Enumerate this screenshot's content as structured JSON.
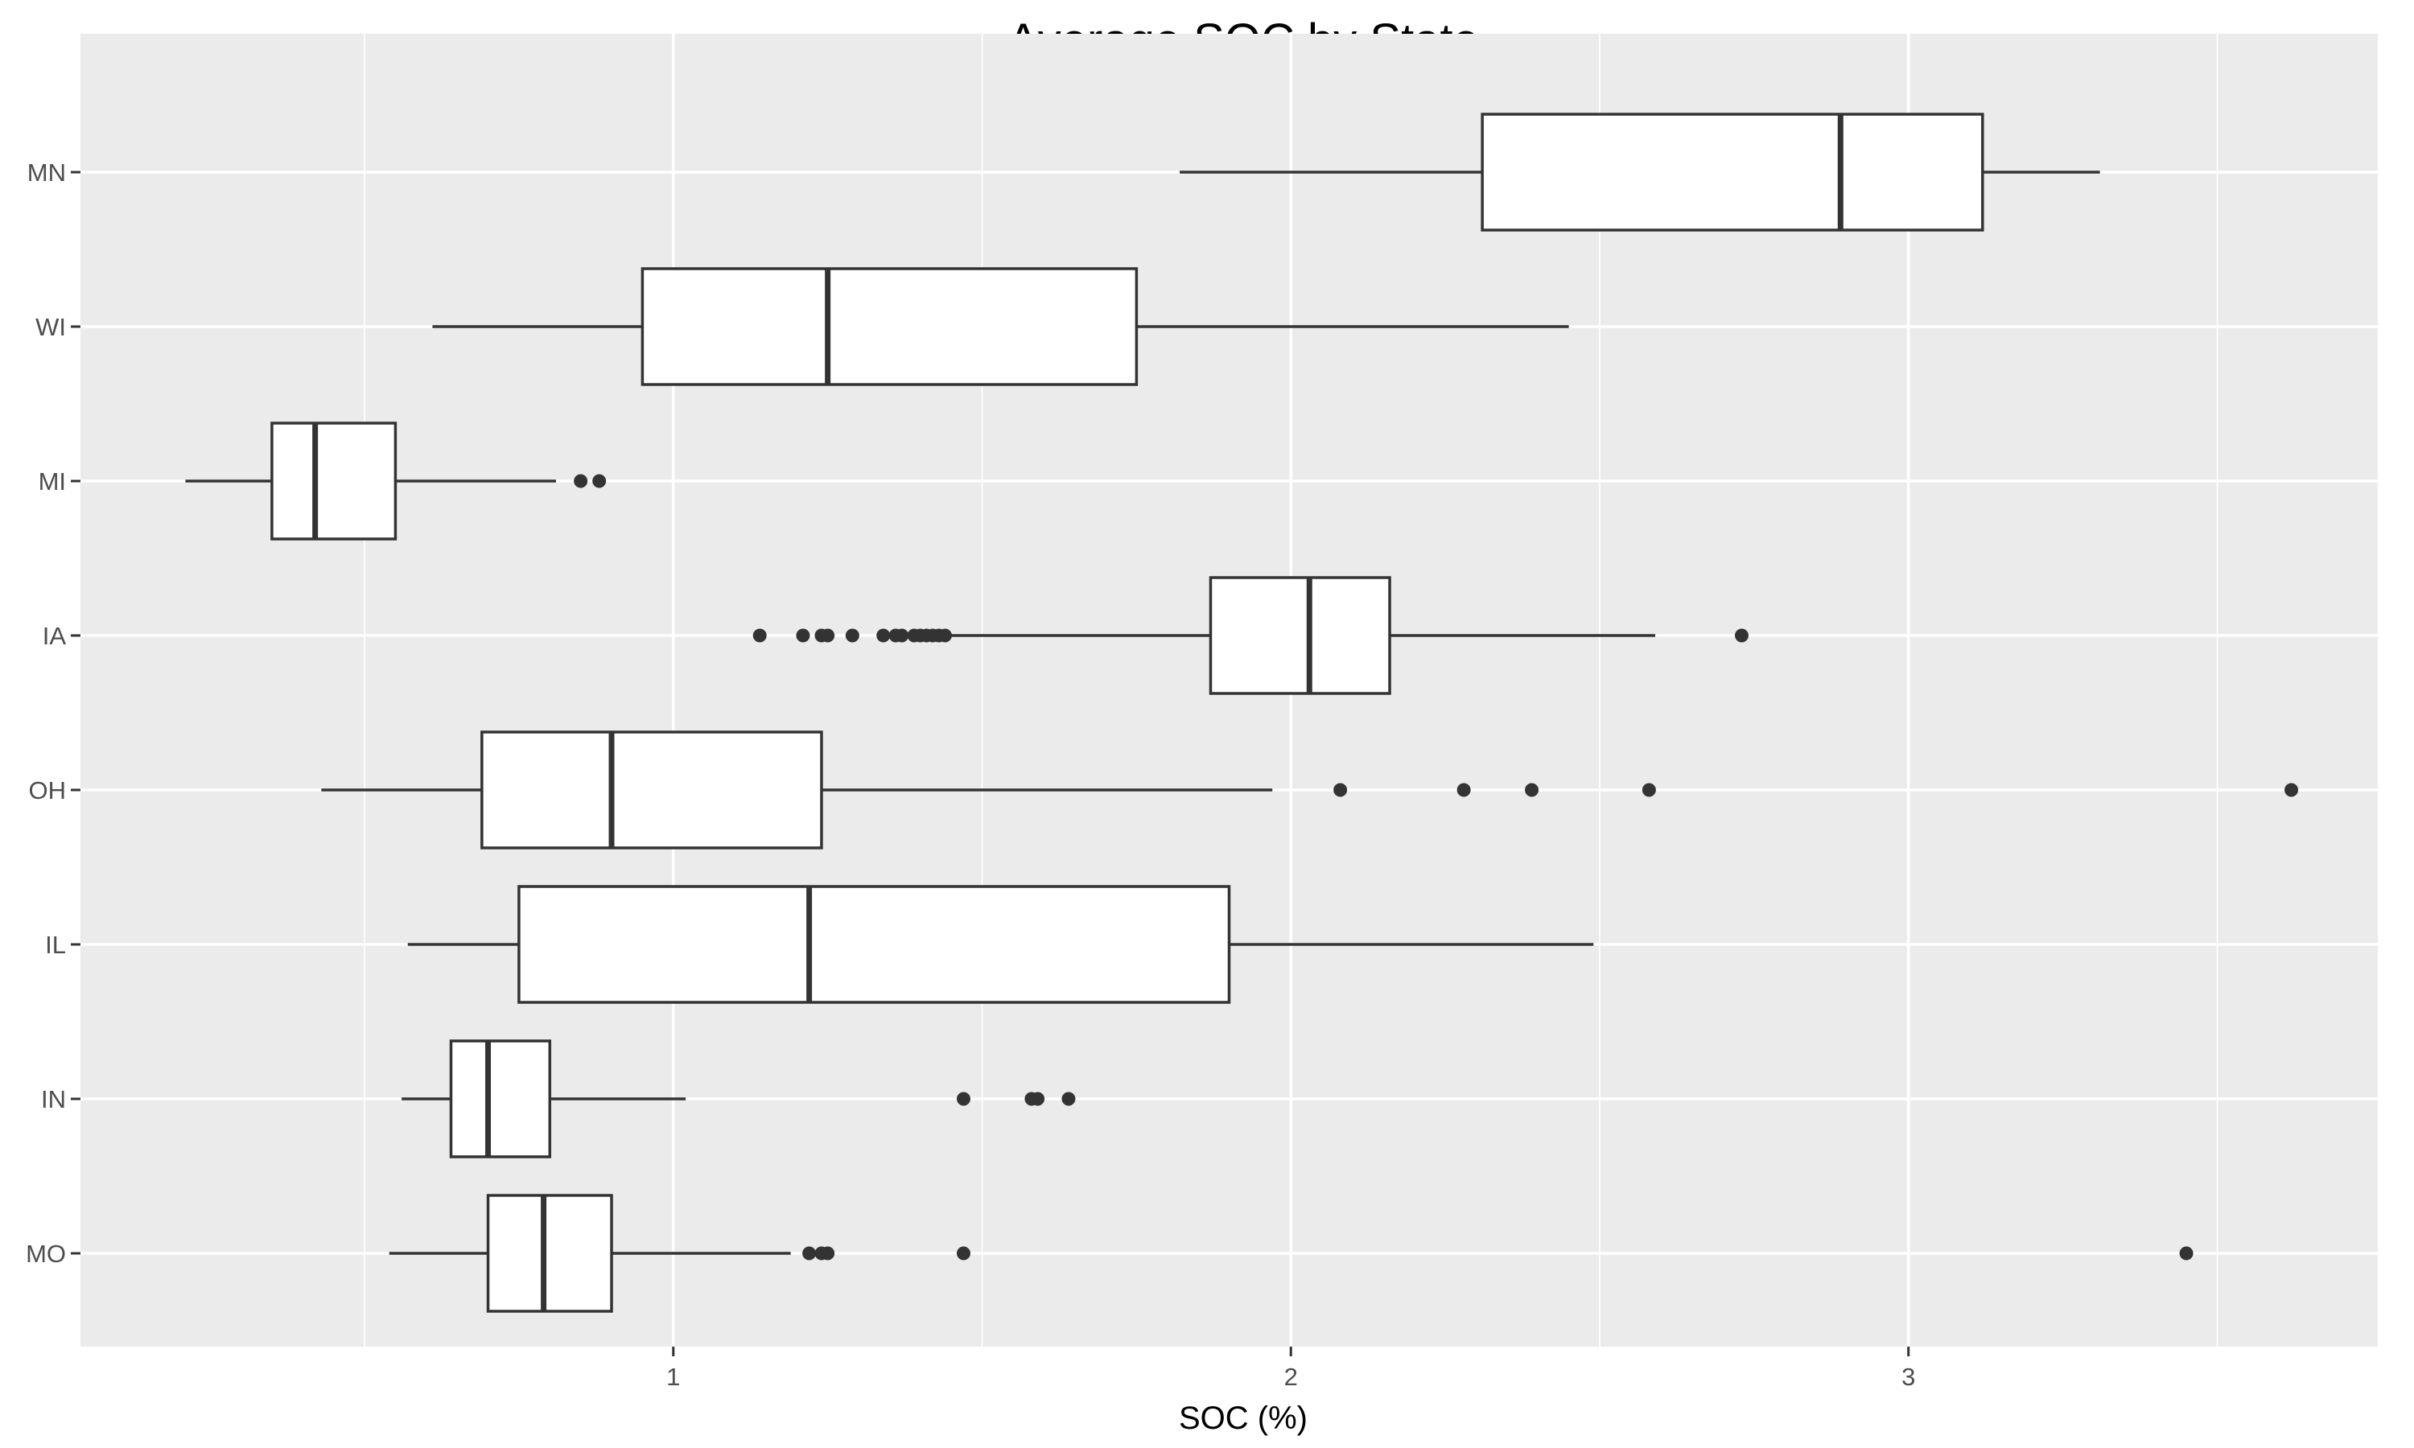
{
  "chart_data": {
    "type": "boxplot",
    "orientation": "horizontal",
    "title": "Average SOC by State",
    "xlabel": "SOC (%)",
    "ylabel": "",
    "xlim": [
      0.04,
      3.76
    ],
    "x_ticks": [
      1,
      2,
      3
    ],
    "x_tick_labels": [
      "1",
      "2",
      "3"
    ],
    "x_minor_ticks": [
      0.5,
      1.5,
      2.5,
      3.5
    ],
    "grid": true,
    "legend": "none",
    "background": "#ebebeb",
    "categories": [
      "MN",
      "WI",
      "MI",
      "IA",
      "OH",
      "IL",
      "IN",
      "MO"
    ],
    "boxes": [
      {
        "name": "MN",
        "whisker_low": 1.82,
        "q1": 2.31,
        "median": 2.89,
        "q3": 3.12,
        "whisker_high": 3.31,
        "outliers": []
      },
      {
        "name": "WI",
        "whisker_low": 0.61,
        "q1": 0.95,
        "median": 1.25,
        "q3": 1.75,
        "whisker_high": 2.45,
        "outliers": []
      },
      {
        "name": "MI",
        "whisker_low": 0.21,
        "q1": 0.35,
        "median": 0.42,
        "q3": 0.55,
        "whisker_high": 0.81,
        "outliers": [
          0.85,
          0.88
        ]
      },
      {
        "name": "IA",
        "whisker_low": 1.45,
        "q1": 1.87,
        "median": 2.03,
        "q3": 2.16,
        "whisker_high": 2.59,
        "outliers": [
          1.14,
          1.21,
          1.24,
          1.25,
          1.29,
          1.34,
          1.36,
          1.37,
          1.39,
          1.4,
          1.41,
          1.42,
          1.43,
          1.44,
          2.73
        ]
      },
      {
        "name": "OH",
        "whisker_low": 0.43,
        "q1": 0.69,
        "median": 0.9,
        "q3": 1.24,
        "whisker_high": 1.97,
        "outliers": [
          2.08,
          2.28,
          2.39,
          2.58,
          3.62
        ]
      },
      {
        "name": "IL",
        "whisker_low": 0.57,
        "q1": 0.75,
        "median": 1.22,
        "q3": 1.9,
        "whisker_high": 2.49,
        "outliers": []
      },
      {
        "name": "IN",
        "whisker_low": 0.56,
        "q1": 0.64,
        "median": 0.7,
        "q3": 0.8,
        "whisker_high": 1.02,
        "outliers": [
          1.47,
          1.58,
          1.59,
          1.64
        ]
      },
      {
        "name": "MO",
        "whisker_low": 0.54,
        "q1": 0.7,
        "median": 0.79,
        "q3": 0.9,
        "whisker_high": 1.19,
        "outliers": [
          1.22,
          1.24,
          1.25,
          1.47,
          3.45
        ]
      }
    ]
  }
}
